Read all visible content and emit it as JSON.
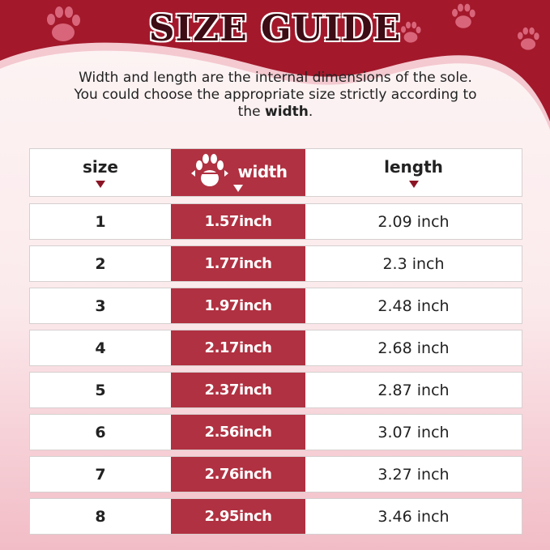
{
  "title": "SIZE GUIDE",
  "description": {
    "text": "Width and length are the internal dimensions of the sole. You could choose the appropriate size strictly according to the ",
    "bold": "width",
    "end": "."
  },
  "table": {
    "headers": {
      "size": "size",
      "width": "width",
      "length": "length"
    },
    "rows": [
      {
        "size": "1",
        "width": "1.57inch",
        "length": "2.09 inch"
      },
      {
        "size": "2",
        "width": "1.77inch",
        "length": "2.3 inch"
      },
      {
        "size": "3",
        "width": "1.97inch",
        "length": "2.48 inch"
      },
      {
        "size": "4",
        "width": "2.17inch",
        "length": "2.68 inch"
      },
      {
        "size": "5",
        "width": "2.37inch",
        "length": "2.87 inch"
      },
      {
        "size": "6",
        "width": "2.56inch",
        "length": "3.07 inch"
      },
      {
        "size": "7",
        "width": "2.76inch",
        "length": "3.27 inch"
      },
      {
        "size": "8",
        "width": "2.95inch",
        "length": "3.46 inch"
      }
    ]
  },
  "colors": {
    "banner": "#a3182b",
    "accent": "#b03141",
    "paw": "#d9657a"
  },
  "icons": [
    "paw-print-icon",
    "paw-width-icon",
    "triangle-down-icon"
  ]
}
